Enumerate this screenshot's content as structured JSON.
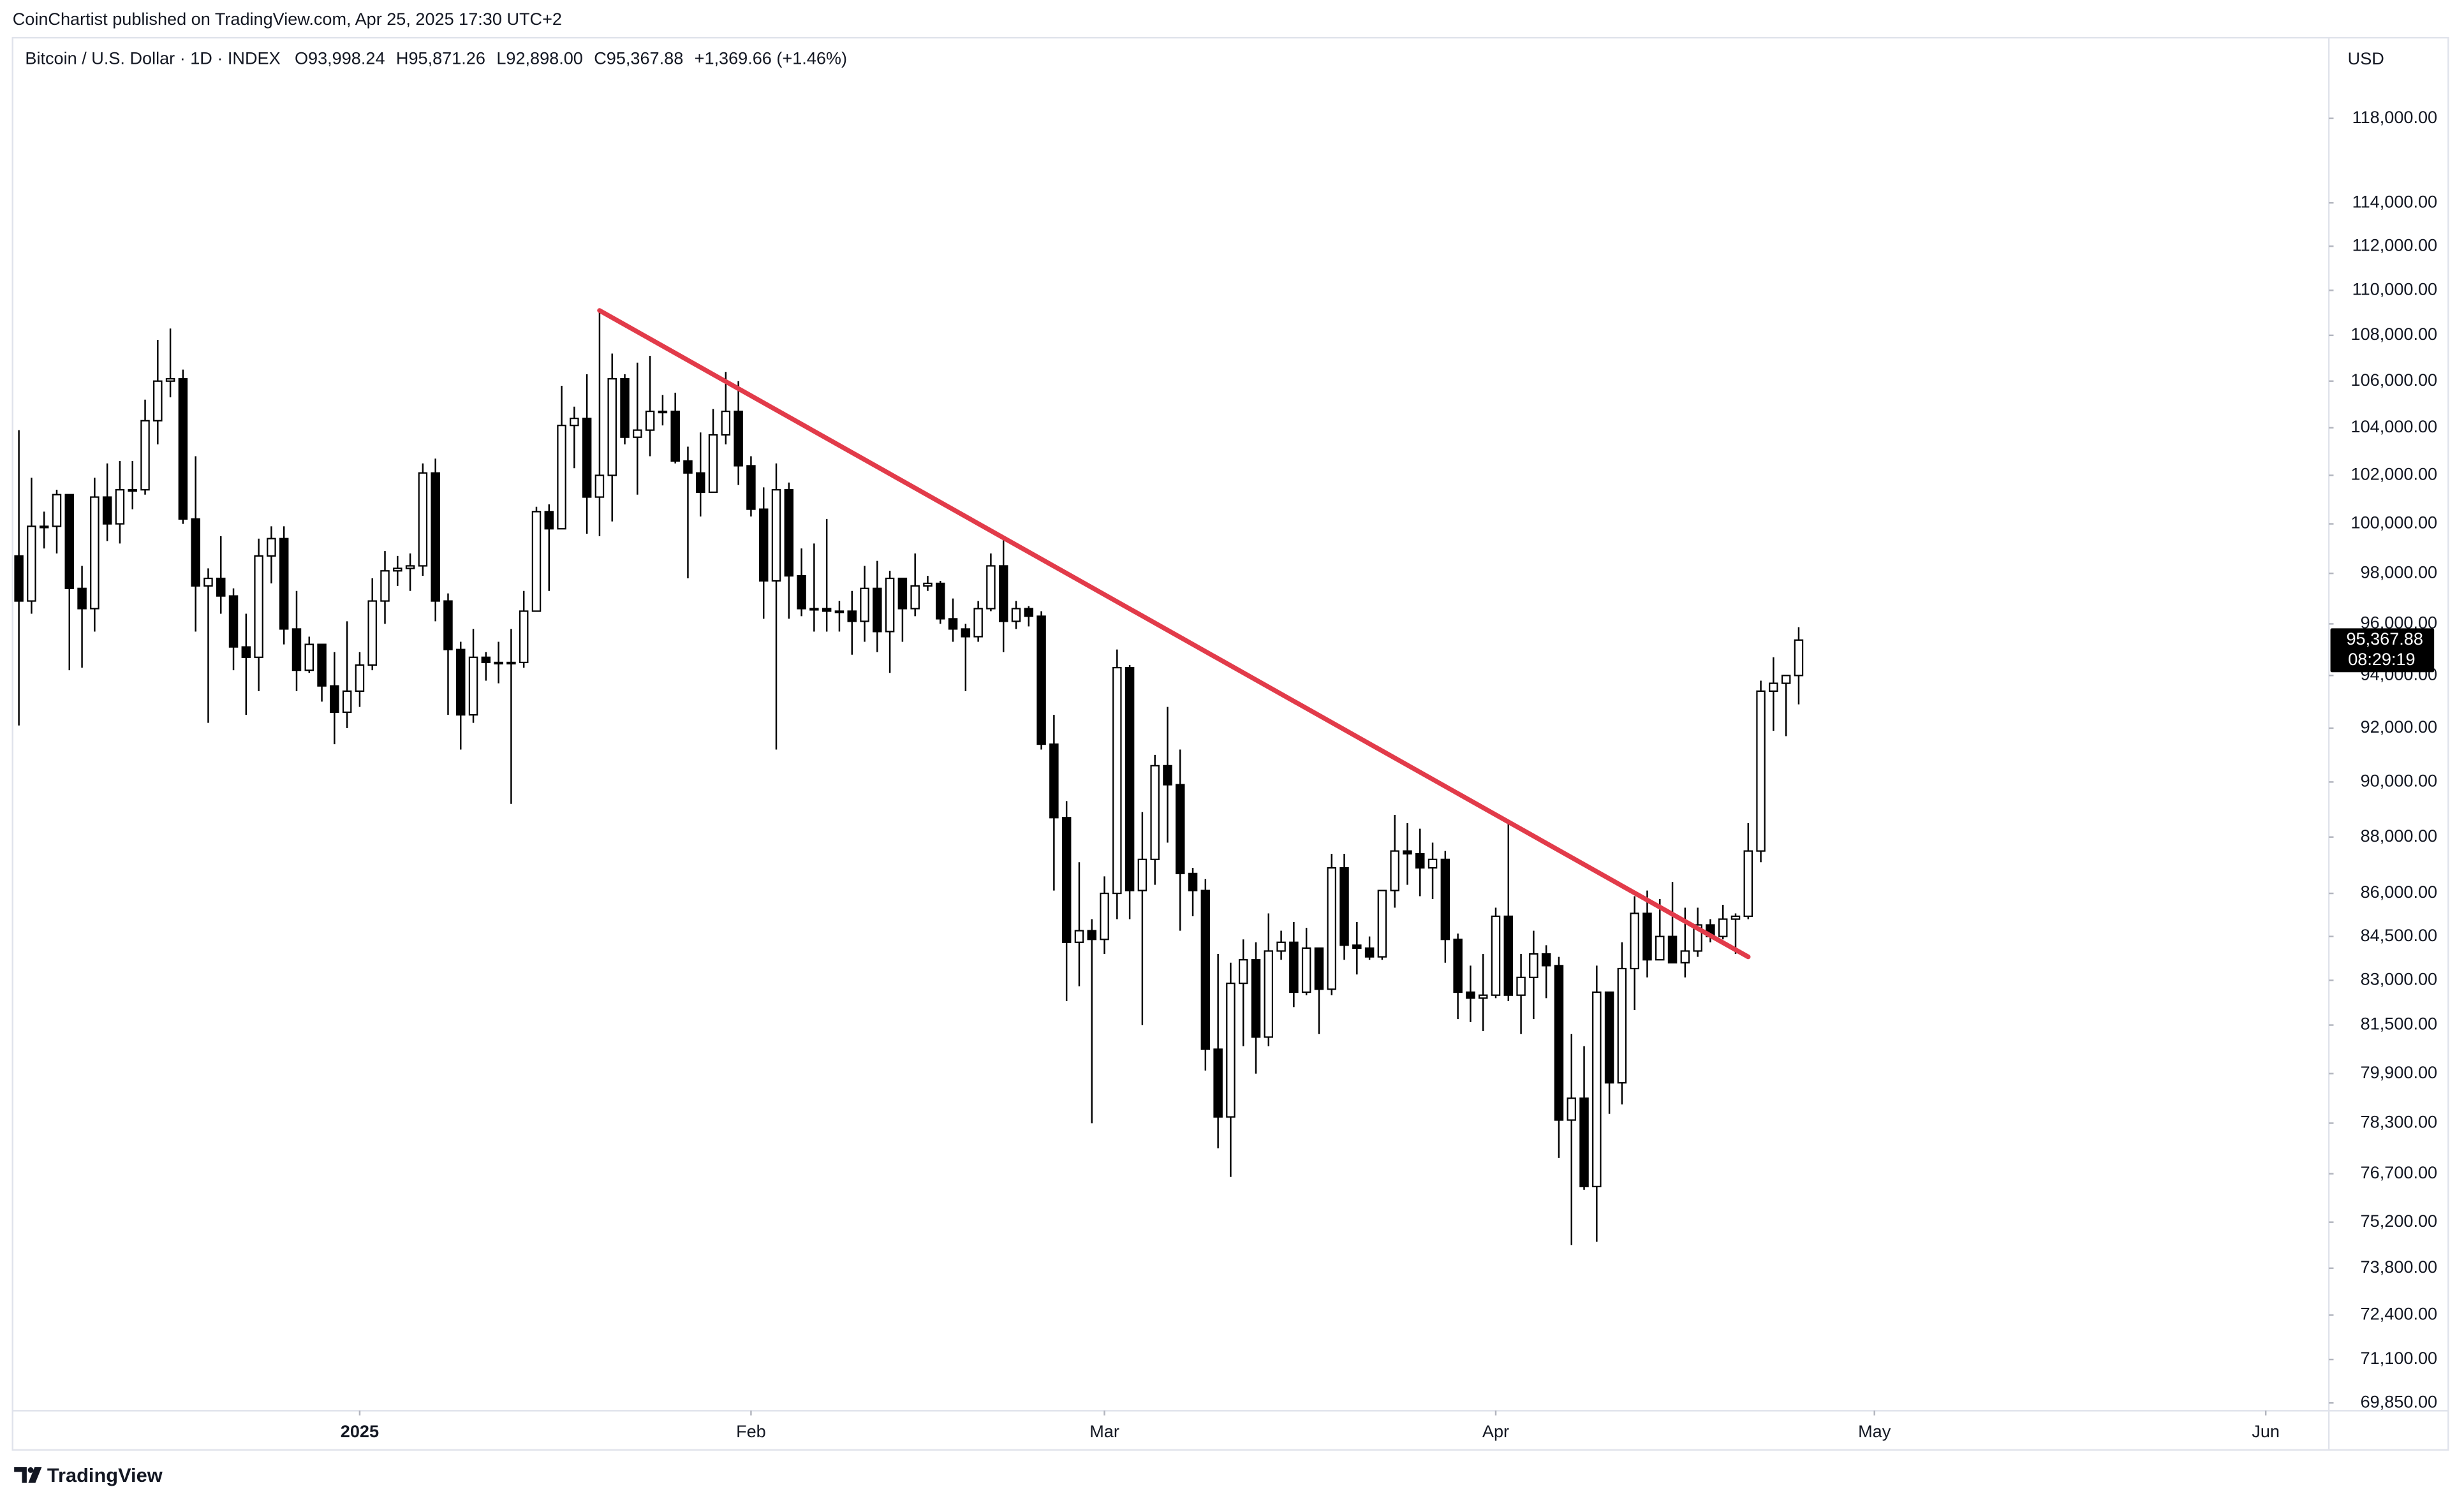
{
  "header": {
    "published": "CoinChartist published on TradingView.com, Apr 25, 2025 17:30 UTC+2"
  },
  "footer": {
    "brand": "TradingView"
  },
  "chart_data": {
    "type": "candlestick",
    "title": "Bitcoin / U.S. Dollar · 1D · INDEX",
    "ohlc_legend": {
      "open": "O93,998.24",
      "high": "H95,871.26",
      "low": "L92,898.00",
      "close": "C95,367.88",
      "change": "+1,369.66 (+1.46%)"
    },
    "currency": "USD",
    "log_scale": true,
    "grid": false,
    "up_color": "#ffffff",
    "down_color": "#000000",
    "border_color": "#000000",
    "xlim": [
      -0.5,
      183
    ],
    "xticks": [
      {
        "value": 27,
        "label": "2025"
      },
      {
        "value": 58,
        "label": "Feb"
      },
      {
        "value": 86,
        "label": "Mar"
      },
      {
        "value": 117,
        "label": "Apr"
      },
      {
        "value": 147,
        "label": "May"
      },
      {
        "value": 178,
        "label": "Jun"
      }
    ],
    "ylim": [
      69630,
      121950
    ],
    "yticks": [
      {
        "value": 118000,
        "label": "118,000.00"
      },
      {
        "value": 114000,
        "label": "114,000.00"
      },
      {
        "value": 112000,
        "label": "112,000.00"
      },
      {
        "value": 110000,
        "label": "110,000.00"
      },
      {
        "value": 108000,
        "label": "108,000.00"
      },
      {
        "value": 106000,
        "label": "106,000.00"
      },
      {
        "value": 104000,
        "label": "104,000.00"
      },
      {
        "value": 102000,
        "label": "102,000.00"
      },
      {
        "value": 100000,
        "label": "100,000.00"
      },
      {
        "value": 98000,
        "label": "98,000.00"
      },
      {
        "value": 96000,
        "label": "96,000.00"
      },
      {
        "value": 94000,
        "label": "94,000.00"
      },
      {
        "value": 92000,
        "label": "92,000.00"
      },
      {
        "value": 90000,
        "label": "90,000.00"
      },
      {
        "value": 88000,
        "label": "88,000.00"
      },
      {
        "value": 86000,
        "label": "86,000.00"
      },
      {
        "value": 84500,
        "label": "84,500.00"
      },
      {
        "value": 83000,
        "label": "83,000.00"
      },
      {
        "value": 81500,
        "label": "81,500.00"
      },
      {
        "value": 79900,
        "label": "79,900.00"
      },
      {
        "value": 78300,
        "label": "78,300.00"
      },
      {
        "value": 76700,
        "label": "76,700.00"
      },
      {
        "value": 75200,
        "label": "75,200.00"
      },
      {
        "value": 73800,
        "label": "73,800.00"
      },
      {
        "value": 72400,
        "label": "72,400.00"
      },
      {
        "value": 71100,
        "label": "71,100.00"
      },
      {
        "value": 69850,
        "label": "69,850.00"
      }
    ],
    "open": [
      98700,
      96900,
      99900,
      99900,
      101200,
      97400,
      96600,
      101100,
      100000,
      101400,
      101400,
      104300,
      106000,
      106100,
      100200,
      97500,
      97800,
      97100,
      95100,
      94700,
      98700,
      99400,
      95800,
      94200,
      95200,
      93600,
      92600,
      93400,
      94400,
      96900,
      98100,
      98200,
      98300,
      102100,
      96900,
      95000,
      92500,
      94700,
      94500,
      94500,
      94500,
      96500,
      100500,
      99800,
      104100,
      104400,
      101100,
      102000,
      106100,
      103600,
      103900,
      104700,
      104700,
      102600,
      102100,
      101300,
      103700,
      104700,
      102400,
      100600,
      97700,
      101400,
      97900,
      96600,
      96600,
      96500,
      96500,
      96100,
      97400,
      95700,
      97800,
      96600,
      97500,
      97600,
      96200,
      95800,
      95500,
      96600,
      98300,
      96100,
      96600,
      96300,
      91400,
      88700,
      84300,
      84700,
      84400,
      86000,
      94300,
      86100,
      87200,
      90600,
      89900,
      86700,
      86100,
      80700,
      78500,
      82900,
      83700,
      81100,
      84000,
      84300,
      82600,
      84100,
      82700,
      86900,
      84200,
      84100,
      83800,
      86100,
      87500,
      87400,
      86900,
      87200,
      84400,
      82600,
      82400,
      82500,
      85200,
      82500,
      83100,
      83900,
      83500,
      78400,
      79100,
      76300,
      82600,
      79600,
      83400,
      85300,
      83700,
      84500,
      83600,
      84000,
      84900,
      84500,
      85100,
      85200,
      87500,
      93400,
      93700,
      93998.24
    ],
    "high": [
      103900,
      101900,
      100500,
      101400,
      101200,
      98300,
      101900,
      102500,
      102600,
      102600,
      105200,
      107800,
      108300,
      106500,
      102800,
      98200,
      99500,
      97400,
      96400,
      99400,
      99900,
      99900,
      97300,
      95500,
      95200,
      94900,
      96100,
      94900,
      97800,
      98900,
      98700,
      98800,
      102500,
      102700,
      97200,
      95300,
      95800,
      94900,
      95300,
      95800,
      97300,
      100700,
      100800,
      105800,
      104900,
      106300,
      109100,
      107200,
      106300,
      106800,
      107100,
      105400,
      105500,
      103200,
      103800,
      104800,
      106400,
      106000,
      102800,
      101500,
      102500,
      101700,
      99000,
      99200,
      100200,
      96900,
      97300,
      98300,
      98500,
      98100,
      97800,
      98800,
      97900,
      97700,
      97000,
      96000,
      96900,
      98800,
      99500,
      96900,
      96700,
      96500,
      92500,
      89300,
      87100,
      85100,
      86600,
      95000,
      94400,
      88900,
      91000,
      92800,
      91200,
      86900,
      86500,
      83900,
      83600,
      84400,
      84300,
      85300,
      84700,
      85000,
      84800,
      84100,
      87400,
      87400,
      85000,
      84500,
      86100,
      88800,
      88500,
      88300,
      87800,
      87500,
      84600,
      83500,
      83900,
      85500,
      88500,
      83900,
      84700,
      84200,
      83800,
      81200,
      80800,
      83500,
      82600,
      84300,
      85900,
      86100,
      85800,
      86400,
      85500,
      85500,
      85100,
      85600,
      85300,
      88500,
      93800,
      94700,
      94000,
      95871.26
    ],
    "low": [
      92100,
      96400,
      99000,
      98800,
      94200,
      94300,
      95700,
      99300,
      99200,
      100600,
      101200,
      103300,
      105300,
      100000,
      95700,
      92200,
      96400,
      94200,
      92500,
      93400,
      97600,
      95200,
      93400,
      94100,
      93000,
      91400,
      92000,
      92800,
      94200,
      96000,
      97500,
      97300,
      97900,
      96100,
      92500,
      91200,
      92200,
      93800,
      93700,
      89200,
      94300,
      96500,
      97300,
      99800,
      102300,
      99600,
      99500,
      100100,
      103300,
      101200,
      102800,
      104100,
      102500,
      97800,
      100300,
      101300,
      103300,
      101600,
      100300,
      96200,
      91200,
      96200,
      96300,
      95700,
      95700,
      95700,
      94800,
      95300,
      94900,
      94100,
      95300,
      96300,
      97300,
      96000,
      95300,
      93400,
      95300,
      96500,
      94900,
      95800,
      95900,
      91200,
      86100,
      82300,
      82800,
      78300,
      83900,
      85100,
      85100,
      81500,
      86300,
      87800,
      84700,
      85200,
      80000,
      77500,
      76600,
      80800,
      79900,
      80800,
      83700,
      82100,
      82500,
      81200,
      82500,
      83700,
      83200,
      83700,
      83700,
      85500,
      86300,
      85900,
      85800,
      83600,
      81700,
      81600,
      81300,
      82400,
      82300,
      81200,
      81700,
      82400,
      77200,
      74500,
      76200,
      74600,
      78600,
      78900,
      82000,
      83100,
      83700,
      83600,
      83100,
      83800,
      84300,
      84400,
      83900,
      85100,
      87100,
      91900,
      91700,
      92898
    ],
    "close": [
      96900,
      99900,
      99900,
      101200,
      97400,
      96600,
      101100,
      100000,
      101400,
      101400,
      104300,
      106000,
      106100,
      100200,
      97500,
      97800,
      97100,
      95100,
      94700,
      98700,
      99400,
      95800,
      94200,
      95200,
      93600,
      92600,
      93400,
      94400,
      96900,
      98100,
      98200,
      98300,
      102100,
      96900,
      95000,
      92500,
      94700,
      94500,
      94500,
      94500,
      96500,
      100500,
      99800,
      104100,
      104400,
      101100,
      102000,
      106100,
      103600,
      103900,
      104700,
      104700,
      102600,
      102100,
      101300,
      103700,
      104700,
      102400,
      100600,
      97700,
      101400,
      97900,
      96600,
      96600,
      96500,
      96500,
      96100,
      97400,
      95700,
      97800,
      96600,
      97500,
      97600,
      96200,
      95800,
      95500,
      96600,
      98300,
      96100,
      96600,
      96300,
      91400,
      88700,
      84300,
      84700,
      84400,
      86000,
      94300,
      86100,
      87200,
      90600,
      89900,
      86700,
      86100,
      80700,
      78500,
      82900,
      83700,
      81100,
      84000,
      84300,
      82600,
      84100,
      82700,
      86900,
      84200,
      84100,
      83800,
      86100,
      87500,
      87400,
      86900,
      87200,
      84400,
      82600,
      82400,
      82500,
      85200,
      82500,
      83100,
      83900,
      83500,
      78400,
      79100,
      76300,
      82600,
      79600,
      83400,
      85300,
      83700,
      84500,
      83600,
      84000,
      84900,
      84500,
      85100,
      85200,
      87500,
      93400,
      93700,
      93998.24,
      95367.88
    ],
    "trendline": {
      "color": "#e23b4a",
      "x": [
        46,
        137
      ],
      "y": [
        109100,
        83800
      ]
    },
    "last_price": {
      "value": 95367.88,
      "label": "95,367.88"
    },
    "countdown": "08:29:19"
  }
}
